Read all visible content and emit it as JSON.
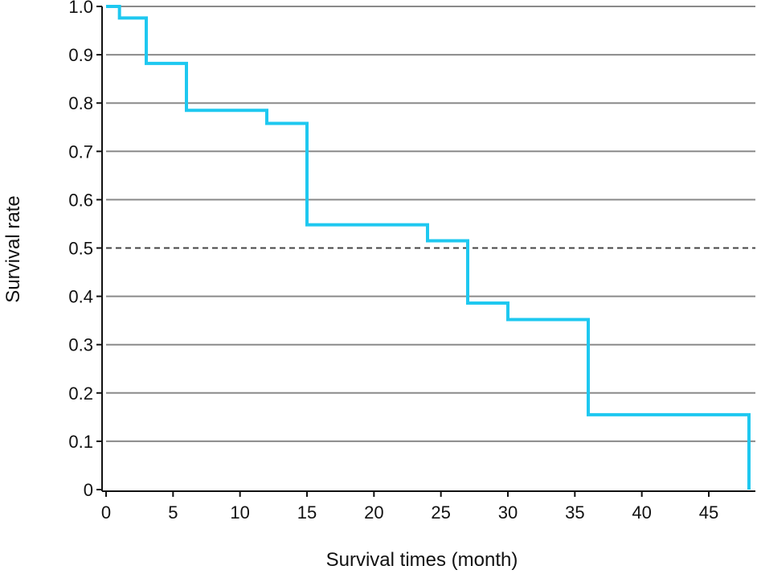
{
  "chart_data": {
    "type": "line",
    "title": "",
    "xlabel": "Survival times (month)",
    "ylabel": "Survival rate",
    "xlim": [
      0,
      48
    ],
    "ylim": [
      0,
      1.0
    ],
    "x_ticks": [
      0,
      5,
      10,
      15,
      20,
      25,
      30,
      35,
      40,
      45
    ],
    "x_tick_labels": [
      "0",
      "5",
      "10",
      "15",
      "20",
      "25",
      "30",
      "35",
      "40",
      "45"
    ],
    "y_ticks": [
      0,
      0.1,
      0.2,
      0.3,
      0.4,
      0.5,
      0.6,
      0.7,
      0.8,
      0.9,
      1.0
    ],
    "y_tick_labels": [
      "0",
      "0.1",
      "0.2",
      "0.3",
      "0.4",
      "0.5",
      "0.6",
      "0.7",
      "0.8",
      "0.9",
      "1.0"
    ],
    "grid": "horizontal",
    "reference_line": {
      "y": 0.5,
      "style": "dashed"
    },
    "series": [
      {
        "step": "post",
        "color": "#1ec8f0",
        "x": [
          0,
          1,
          3,
          6,
          12,
          15,
          24,
          27,
          30,
          36,
          48
        ],
        "y": [
          1.0,
          0.976,
          0.882,
          0.785,
          0.758,
          0.548,
          0.515,
          0.386,
          0.352,
          0.155,
          0.0
        ]
      }
    ]
  }
}
